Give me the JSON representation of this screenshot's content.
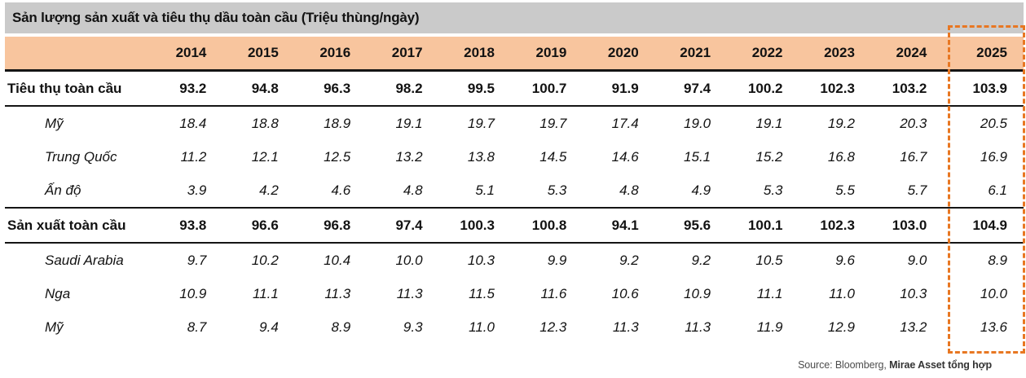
{
  "title": "Sản lượng sản xuất và tiêu thụ dầu toàn cầu (Triệu thùng/ngày)",
  "colors": {
    "title_bar_bg": "#CACACA",
    "header_bg": "#F8C59E",
    "highlight_border": "#E87722",
    "rule": "#151515"
  },
  "chart_data": {
    "type": "table",
    "title": "Sản lượng sản xuất và tiêu thụ dầu toàn cầu (Triệu thùng/ngày)",
    "columns": [
      "2014",
      "2015",
      "2016",
      "2017",
      "2018",
      "2019",
      "2020",
      "2021",
      "2022",
      "2023",
      "2024",
      "2025"
    ],
    "highlight_column": "2025",
    "rows": [
      {
        "label": "Tiêu thụ toàn cầu",
        "group": "total",
        "values": [
          "93.2",
          "94.8",
          "96.3",
          "98.2",
          "99.5",
          "100.7",
          "91.9",
          "97.4",
          "100.2",
          "102.3",
          "103.2",
          "103.9"
        ]
      },
      {
        "label": "Mỹ",
        "group": "sub",
        "values": [
          "18.4",
          "18.8",
          "18.9",
          "19.1",
          "19.7",
          "19.7",
          "17.4",
          "19.0",
          "19.1",
          "19.2",
          "20.3",
          "20.5"
        ]
      },
      {
        "label": "Trung Quốc",
        "group": "sub",
        "values": [
          "11.2",
          "12.1",
          "12.5",
          "13.2",
          "13.8",
          "14.5",
          "14.6",
          "15.1",
          "15.2",
          "16.8",
          "16.7",
          "16.9"
        ]
      },
      {
        "label": "Ấn độ",
        "group": "sub",
        "values": [
          "3.9",
          "4.2",
          "4.6",
          "4.8",
          "5.1",
          "5.3",
          "4.8",
          "4.9",
          "5.3",
          "5.5",
          "5.7",
          "6.1"
        ]
      },
      {
        "label": "Sản xuất toàn cầu",
        "group": "total",
        "values": [
          "93.8",
          "96.6",
          "96.8",
          "97.4",
          "100.3",
          "100.8",
          "94.1",
          "95.6",
          "100.1",
          "102.3",
          "103.0",
          "104.9"
        ]
      },
      {
        "label": "Saudi Arabia",
        "group": "sub",
        "values": [
          "9.7",
          "10.2",
          "10.4",
          "10.0",
          "10.3",
          "9.9",
          "9.2",
          "9.2",
          "10.5",
          "9.6",
          "9.0",
          "8.9"
        ]
      },
      {
        "label": "Nga",
        "group": "sub",
        "values": [
          "10.9",
          "11.1",
          "11.3",
          "11.3",
          "11.5",
          "11.6",
          "10.6",
          "10.9",
          "11.1",
          "11.0",
          "10.3",
          "10.0"
        ]
      },
      {
        "label": "Mỹ",
        "group": "sub",
        "values": [
          "8.7",
          "9.4",
          "8.9",
          "9.3",
          "11.0",
          "12.3",
          "11.3",
          "11.3",
          "11.9",
          "12.9",
          "13.2",
          "13.6"
        ]
      }
    ]
  },
  "source": {
    "prefix": "Source: Bloomberg, ",
    "emphasis": "Mirae Asset tổng hợp"
  }
}
